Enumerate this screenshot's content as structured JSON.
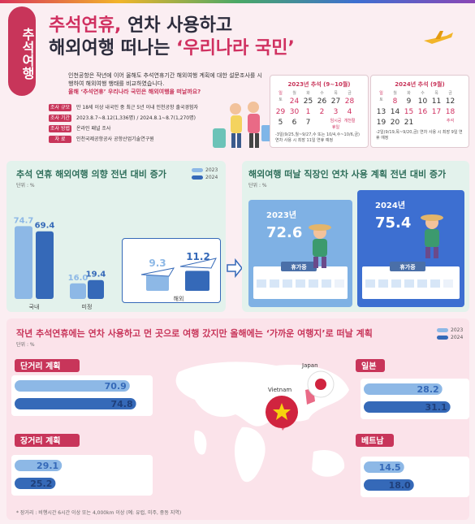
{
  "header": {
    "vertical_title": "추석여행",
    "title_line1_highlight": "추석연휴,",
    "title_line1_rest": " 연차 사용하고",
    "title_line2_a": "해외여행 떠나는 ",
    "title_line2_b": "‘우리나라 국민’",
    "intro_p1": "인천공항은 작년에 이어 올해도 추석연휴기간 해외여행 계획에 대한 설문조사를 시행하여 해외여행 행태를 비교하였습니다.",
    "intro_p2": "올해 ‘추석연휴’ 우리나라 국민은 해외여행을 떠날까요?",
    "meta": [
      {
        "tag": "조사 규모",
        "text": "만 18세 이상 내국인 중 최근 5년 이내 인천공항 출국경험자"
      },
      {
        "tag": "조사 기간",
        "text": "2023.8.7~8.12(1,336명) / 2024.8.1~8.7(1,270명)"
      },
      {
        "tag": "조사 방법",
        "text": "온라인 패널 조사"
      },
      {
        "tag": "자    료",
        "text": "인천국제공항공사 공항산업기술연구원"
      }
    ]
  },
  "calendars": [
    {
      "title": "2023년 추석 (9~10월)",
      "days": [
        "일",
        "월",
        "화",
        "수",
        "목",
        "금",
        "토"
      ],
      "row1": [
        "24",
        "25",
        "26",
        "27",
        "28",
        "29",
        "30"
      ],
      "row2": [
        "1",
        "2",
        "3",
        "4",
        "5",
        "6",
        "7"
      ],
      "sub": [
        "",
        "",
        "",
        "",
        "",
        "추석",
        ""
      ],
      "sub2": [
        "",
        "임시공휴일",
        "개천절",
        "",
        "",
        "",
        ""
      ],
      "note": "-3일(9/25,월~9/27,수 또는 10/4,수~10/6,금) 연차 사용 시 최장 11일 연휴 예정"
    },
    {
      "title": "2024년 추석 (9월)",
      "days": [
        "일",
        "월",
        "화",
        "수",
        "목",
        "금",
        "토"
      ],
      "row1": [
        "8",
        "9",
        "10",
        "11",
        "12",
        "13",
        "14"
      ],
      "row2": [
        "15",
        "16",
        "17",
        "18",
        "19",
        "20",
        "21"
      ],
      "sub": [
        "",
        "",
        "",
        "",
        "",
        "",
        ""
      ],
      "sub2": [
        "",
        "",
        "추석",
        "",
        "",
        "",
        ""
      ],
      "note": "-2일(9/19,목~9/20,금) 연차 사용 시 최장 9일 연휴 예정"
    }
  ],
  "panel1": {
    "title": "추석 연휴 해외여행 의향 전년 대비 증가",
    "unit": "단위 : %",
    "legend": [
      "2023",
      "2024"
    ]
  },
  "panel2": {
    "title": "해외여행 떠날 직장인 연차 사용 계획 전년 대비 증가",
    "unit": "단위 : %",
    "card2023": {
      "year": "2023년",
      "value": "72.6",
      "tag": "휴가중"
    },
    "card2024": {
      "year": "2024년",
      "value": "75.4",
      "tag": "휴가중"
    }
  },
  "panel3": {
    "title": "작년 추석연휴에는 연차 사용하고 먼 곳으로 여행 갔지만 올해에는 ‘가까운 여행지’로 떠날 계획",
    "unit": "단위 : %",
    "legend": [
      "2023",
      "2024"
    ],
    "footnote": "* 장거리 : 비행시간 6시간 이상 또는 4,000km 이상 (예: 유럽, 미주, 중동 지역)",
    "map_labels": {
      "japan": "Japan",
      "vietnam": "Vietnam"
    }
  },
  "chart_data": [
    {
      "type": "bar",
      "title": "추석 연휴 해외여행 의향 전년 대비 증가",
      "categories": [
        "국내",
        "미정",
        "해외"
      ],
      "series": [
        {
          "name": "2023",
          "values": [
            74.7,
            16.0,
            9.3
          ]
        },
        {
          "name": "2024",
          "values": [
            69.4,
            19.4,
            11.2
          ]
        }
      ],
      "unit": "%"
    },
    {
      "type": "bar",
      "title": "해외여행 떠날 직장인 연차 사용 계획 전년 대비 증가",
      "categories": [
        "2023년",
        "2024년"
      ],
      "values": [
        72.6,
        75.4
      ],
      "unit": "%"
    },
    {
      "type": "bar",
      "title": "작년 추석연휴에는 연차 사용하고 먼 곳으로 여행 갔지만 올해에는 ‘가까운 여행지’로 떠날 계획",
      "categories": [
        "단거리 계획",
        "장거리 계획",
        "일본",
        "베트남"
      ],
      "series": [
        {
          "name": "2023",
          "values": [
            70.9,
            29.1,
            28.2,
            14.5
          ]
        },
        {
          "name": "2024",
          "values": [
            74.8,
            25.2,
            31.1,
            18.0
          ]
        }
      ],
      "unit": "%"
    }
  ],
  "colors": {
    "c2023": "#8db8e6",
    "c2024": "#3569b8",
    "accent": "#c8355a"
  }
}
